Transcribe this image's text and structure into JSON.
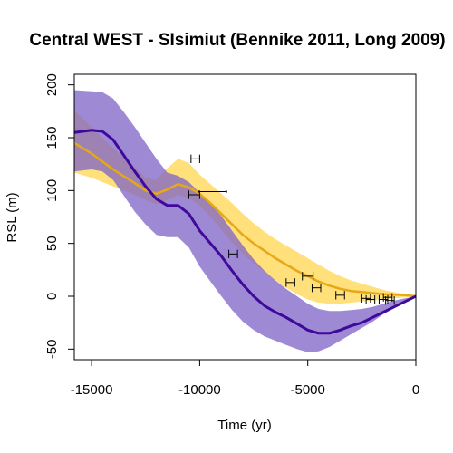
{
  "chart_data": {
    "type": "area",
    "title": "Central WEST - SIsimiut (Bennike 2011, Long 2009)",
    "xlabel": "Time (yr)",
    "ylabel": "RSL (m)",
    "xlim": [
      -15800,
      0
    ],
    "ylim": [
      -60,
      210
    ],
    "xticks": [
      -15000,
      -10000,
      -5000,
      0
    ],
    "yticks": [
      -50,
      0,
      50,
      100,
      150,
      200
    ],
    "grid": false,
    "legend": "none",
    "series": [
      {
        "color": "#FFC107",
        "band_color": "#FFD54F",
        "line_color": "#E6A817",
        "x": [
          -15800,
          -15000,
          -14000,
          -13000,
          -12500,
          -12000,
          -11500,
          -11000,
          -10500,
          -10000,
          -9500,
          -9000,
          -8500,
          -8000,
          -7500,
          -7000,
          -6500,
          -6000,
          -5500,
          -5000,
          -4500,
          -4000,
          -3500,
          -3000,
          -2500,
          -2000,
          -1500,
          -1000,
          -500,
          0
        ],
        "y": [
          145,
          135,
          120,
          107,
          100,
          97,
          101,
          106,
          103,
          97,
          88,
          78,
          68,
          58,
          50,
          43,
          36,
          30,
          24,
          19,
          14,
          10,
          7,
          5,
          4,
          3,
          2,
          1.5,
          1,
          0
        ],
        "lower": [
          117,
          112,
          104,
          96,
          91,
          87,
          91,
          96,
          93,
          86,
          75,
          63,
          51,
          40,
          31,
          23,
          15,
          8,
          2,
          -3,
          -6,
          -7,
          -7,
          -6,
          -5,
          -4,
          -3,
          -2,
          -1,
          0
        ],
        "upper": [
          176,
          160,
          140,
          122,
          112,
          110,
          121,
          130,
          126,
          115,
          106,
          97,
          88,
          78,
          69,
          61,
          54,
          48,
          42,
          36,
          30,
          24,
          19,
          15,
          12,
          9,
          6,
          4,
          2,
          0
        ]
      },
      {
        "color": "#7B5CC4",
        "band_color": "#7E63C5",
        "line_color": "#3F0A9C",
        "x": [
          -15800,
          -15000,
          -14500,
          -14000,
          -13500,
          -13000,
          -12500,
          -12000,
          -11500,
          -11000,
          -10500,
          -10000,
          -9500,
          -9000,
          -8500,
          -8000,
          -7500,
          -7000,
          -6500,
          -6000,
          -5500,
          -5000,
          -4500,
          -4000,
          -3500,
          -3000,
          -2500,
          -2000,
          -1500,
          -1000,
          -500,
          0
        ],
        "y": [
          155,
          157,
          156,
          148,
          133,
          118,
          104,
          92,
          86,
          86,
          78,
          62,
          50,
          38,
          24,
          11,
          0,
          -9,
          -15,
          -20,
          -26,
          -32,
          -35,
          -35,
          -32,
          -28,
          -25,
          -20,
          -15,
          -10,
          -5,
          0
        ],
        "lower": [
          118,
          120,
          118,
          110,
          95,
          80,
          68,
          58,
          56,
          56,
          46,
          28,
          14,
          0,
          -13,
          -24,
          -32,
          -38,
          -42,
          -46,
          -50,
          -53,
          -52,
          -48,
          -42,
          -36,
          -30,
          -24,
          -17,
          -11,
          -5,
          0
        ],
        "upper": [
          195,
          194,
          193,
          187,
          174,
          160,
          145,
          130,
          117,
          114,
          108,
          98,
          88,
          76,
          62,
          48,
          35,
          24,
          15,
          7,
          0,
          -7,
          -12,
          -14,
          -14,
          -13,
          -12,
          -10,
          -7,
          -4,
          -2,
          0
        ]
      }
    ],
    "observations": [
      {
        "x": -10200,
        "y": 130,
        "xerr": 200,
        "yerr": 4
      },
      {
        "x": -10250,
        "y": 96,
        "xerr": 250,
        "yerr": 4
      },
      {
        "x": -9400,
        "y": 99,
        "xerr": 650,
        "yerr": 1
      },
      {
        "x": -8450,
        "y": 40,
        "xerr": 200,
        "yerr": 4
      },
      {
        "x": -5800,
        "y": 13,
        "xerr": 200,
        "yerr": 4
      },
      {
        "x": -5000,
        "y": 19,
        "xerr": 250,
        "yerr": 4
      },
      {
        "x": -4600,
        "y": 8,
        "xerr": 200,
        "yerr": 4
      },
      {
        "x": -3500,
        "y": 1,
        "xerr": 200,
        "yerr": 4
      },
      {
        "x": -2300,
        "y": -2,
        "xerr": 200,
        "yerr": 4
      },
      {
        "x": -2100,
        "y": -3,
        "xerr": 200,
        "yerr": 4
      },
      {
        "x": -1500,
        "y": -3,
        "xerr": 200,
        "yerr": 4
      },
      {
        "x": -1300,
        "y": -1,
        "xerr": 200,
        "yerr": 4
      },
      {
        "x": -1200,
        "y": -4,
        "xerr": 200,
        "yerr": 4
      }
    ]
  }
}
